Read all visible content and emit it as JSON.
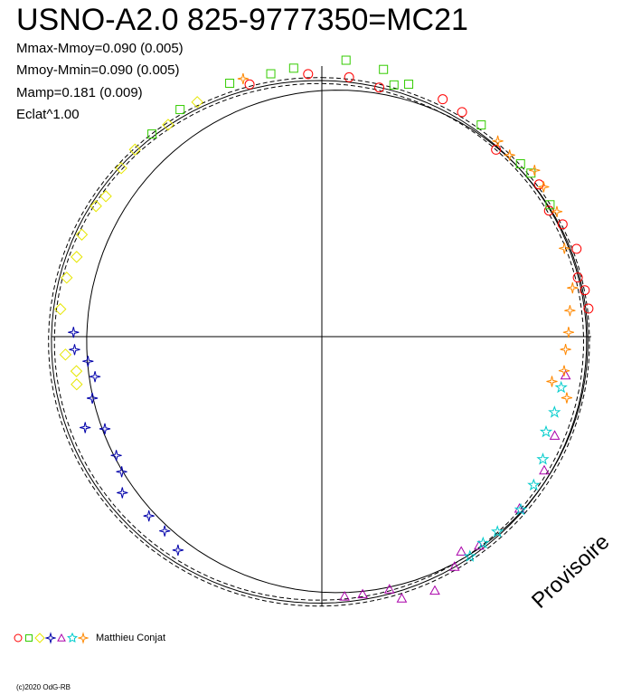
{
  "title": "USNO-A2.0 825-9777350=MC21",
  "stats": [
    "Mmax-Mmoy=0.090 (0.005)",
    "Mmoy-Mmin=0.090 (0.005)",
    "Mamp=0.181 (0.009)",
    "Eclat^1.00"
  ],
  "watermark": "Provisoire",
  "observer": "Matthieu Conjat",
  "copyright": "(c)2020 OdG-RB",
  "chart_data": {
    "type": "scatter",
    "projection": "polar",
    "series_symbols": [
      {
        "symbol": "circle",
        "color": "#ff0000"
      },
      {
        "symbol": "square",
        "color": "#33cc00"
      },
      {
        "symbol": "diamond",
        "color": "#e6e600"
      },
      {
        "symbol": "star4",
        "color": "#0000aa"
      },
      {
        "symbol": "triangle",
        "color": "#aa00aa"
      },
      {
        "symbol": "star5",
        "color": "#00cccc"
      },
      {
        "symbol": "star4",
        "color": "#ff8800"
      }
    ],
    "points": [
      [
        -16,
        97.3,
        0
      ],
      [
        -3,
        97.5,
        0
      ],
      [
        6,
        96.7,
        0
      ],
      [
        13,
        94.8,
        0
      ],
      [
        27,
        98.8,
        0
      ],
      [
        32,
        98.2,
        0
      ],
      [
        43,
        94.8,
        0
      ],
      [
        55,
        98.4,
        0
      ],
      [
        61,
        96.4,
        0
      ],
      [
        65,
        98.6,
        0
      ],
      [
        71,
        100,
        0
      ],
      [
        77,
        97.5,
        0
      ],
      [
        80,
        99.1,
        0
      ],
      [
        84,
        99.5,
        0
      ],
      [
        -40,
        98.1,
        1
      ],
      [
        -32,
        99.3,
        1
      ],
      [
        -20,
        100,
        1
      ],
      [
        -11,
        99.3,
        1
      ],
      [
        -6,
        100.1,
        1
      ],
      [
        5,
        102.9,
        1
      ],
      [
        13,
        101.7,
        1
      ],
      [
        16,
        97.1,
        1
      ],
      [
        19,
        99,
        1
      ],
      [
        37,
        98.3,
        1
      ],
      [
        49,
        97.7,
        1
      ],
      [
        52,
        98.5,
        1
      ],
      [
        60,
        97.8,
        1
      ],
      [
        -57,
        95.6,
        2
      ],
      [
        -50,
        97.2,
        2
      ],
      [
        -45,
        98.1,
        2
      ],
      [
        -36,
        97.1,
        2
      ],
      [
        -28,
        98.5,
        2
      ],
      [
        -60,
        96.8,
        2
      ],
      [
        -67,
        96.8,
        2
      ],
      [
        -72,
        95.7,
        2
      ],
      [
        -77,
        97.2,
        2
      ],
      [
        -84,
        97.6,
        2
      ],
      [
        -94,
        95.4,
        2
      ],
      [
        -98,
        92,
        2
      ],
      [
        -101,
        92.7,
        2
      ],
      [
        -89,
        92.2,
        3
      ],
      [
        -93,
        91.9,
        3
      ],
      [
        -96,
        87.3,
        3
      ],
      [
        -100,
        85.5,
        3
      ],
      [
        -105,
        88.2,
        3
      ],
      [
        -111,
        94.1,
        3
      ],
      [
        -113,
        87.5,
        3
      ],
      [
        -120,
        88.1,
        3
      ],
      [
        -124,
        89.6,
        3
      ],
      [
        -128,
        94,
        3
      ],
      [
        -136,
        92.4,
        3
      ],
      [
        -141,
        92.7,
        3
      ],
      [
        -146,
        95.5,
        3
      ],
      [
        99,
        91.6,
        4
      ],
      [
        113,
        93.9,
        4
      ],
      [
        121,
        96.3,
        4
      ],
      [
        131,
        97.2,
        4
      ],
      [
        143,
        97,
        4
      ],
      [
        147,
        95,
        4
      ],
      [
        150,
        98.5,
        4
      ],
      [
        156,
        103.1,
        4
      ],
      [
        163,
        101.5,
        4
      ],
      [
        165,
        97,
        4
      ],
      [
        171,
        96.7,
        4
      ],
      [
        175,
        96.7,
        4
      ],
      [
        102,
        90.8,
        5
      ],
      [
        108,
        90.8,
        5
      ],
      [
        113,
        90.4,
        5
      ],
      [
        119,
        93.8,
        5
      ],
      [
        125,
        96,
        5
      ],
      [
        131,
        97.8,
        5
      ],
      [
        138,
        97.4,
        5
      ],
      [
        142,
        97.2,
        5
      ],
      [
        146,
        98.3,
        5
      ],
      [
        42,
        97.6,
        6
      ],
      [
        46,
        96.9,
        6
      ],
      [
        52,
        100.2,
        6
      ],
      [
        56,
        99.3,
        6
      ],
      [
        62,
        98.8,
        6
      ],
      [
        70,
        95.8,
        6
      ],
      [
        79,
        94.8,
        6
      ],
      [
        84,
        92.6,
        6
      ],
      [
        89,
        91.6,
        6
      ],
      [
        93,
        90.6,
        6
      ],
      [
        98,
        90.8,
        6
      ],
      [
        101,
        87,
        6
      ],
      [
        104,
        93.7,
        6
      ],
      [
        -17,
        100,
        6
      ]
    ],
    "curves": [
      "mean fit",
      "fit min",
      "fit max",
      "reference circle"
    ]
  }
}
